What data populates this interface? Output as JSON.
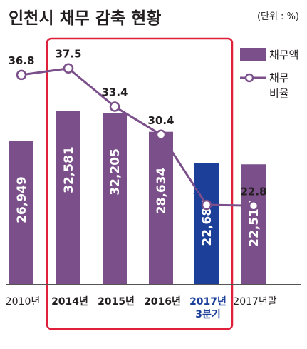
{
  "chart_data": {
    "type": "bar",
    "title": "인천시 채무 감축 현황",
    "unit": "(단위 : %)",
    "categories": [
      "2010년",
      "2014년",
      "2015년",
      "2016년",
      "2017년\n3분기",
      "2017년말"
    ],
    "series": [
      {
        "name": "채무액",
        "type": "bar",
        "values": [
          26949,
          32581,
          32205,
          28634,
          22687,
          22517
        ],
        "labels": [
          "26,949",
          "32,581",
          "32,205",
          "28,634",
          "22,687",
          "22,517"
        ]
      },
      {
        "name": "채무\n비율",
        "type": "line",
        "values": [
          36.8,
          37.5,
          33.4,
          30.4,
          22.9,
          22.8
        ],
        "labels": [
          "36.8",
          "37.5",
          "33.4",
          "30.4",
          "22.9",
          "22.8"
        ]
      }
    ],
    "highlight_categories": [
      1,
      2,
      3,
      4
    ],
    "highlight_bar_index": 4,
    "colors": {
      "bar": "#7b4f8a",
      "bar_highlight": "#1c3f99",
      "line": "#7b4f8a",
      "highlight_text": "#1c3f99",
      "highlight_frame": "#e0203a",
      "baseline": "#555555"
    },
    "legend_position": "top-right",
    "grid": false
  }
}
